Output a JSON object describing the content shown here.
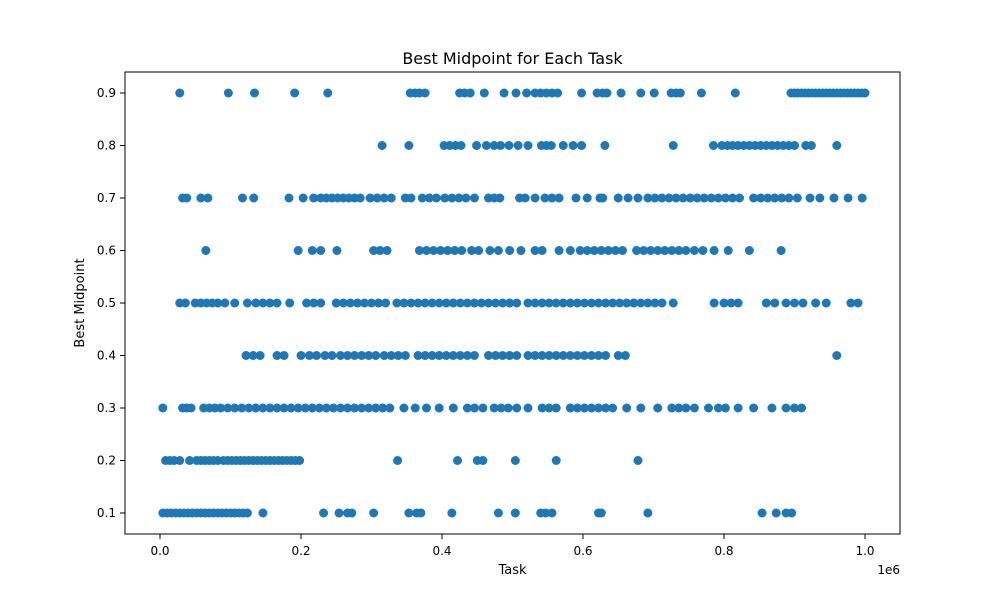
{
  "chart_data": {
    "type": "scatter",
    "title": "Best Midpoint for Each Task",
    "xlabel": "Task",
    "ylabel": "Best Midpoint",
    "x_offset_label": "1e6",
    "xlim": [
      0,
      1000000
    ],
    "ylim": [
      0.1,
      0.9
    ],
    "grid": false,
    "legend": "none",
    "marker_color": "#1f77b4",
    "x_ticks": [
      0,
      200000,
      400000,
      600000,
      800000,
      1000000
    ],
    "x_tick_labels": [
      "0.0",
      "0.2",
      "0.4",
      "0.6",
      "0.8",
      "1.0"
    ],
    "y_ticks": [
      0.1,
      0.2,
      0.3,
      0.4,
      0.5,
      0.6,
      0.7,
      0.8,
      0.9
    ],
    "y_tick_labels": [
      "0.1",
      "0.2",
      "0.3",
      "0.4",
      "0.5",
      "0.6",
      "0.7",
      "0.8",
      "0.9"
    ],
    "series": [
      {
        "y": 0.9,
        "x": [
          28000,
          97000,
          134000,
          191000,
          238000,
          355000,
          362000,
          368000,
          376000,
          425000,
          432000,
          440000,
          460000,
          488000,
          505000,
          520000,
          532000,
          540000,
          548000,
          556000,
          564000,
          598000,
          620000,
          628000,
          634000,
          654000,
          682000,
          701000,
          725000,
          732000,
          738000,
          768000,
          816000,
          895000,
          900000,
          905000,
          910000,
          915000,
          920000,
          925000,
          930000,
          935000,
          940000,
          945000,
          950000,
          955000,
          960000,
          965000,
          970000,
          975000,
          980000,
          985000,
          990000,
          995000,
          1000000
        ]
      },
      {
        "y": 0.8,
        "x": [
          315000,
          353000,
          403000,
          411000,
          419000,
          427000,
          449000,
          463000,
          474000,
          483000,
          495000,
          508000,
          522000,
          541000,
          548000,
          555000,
          572000,
          586000,
          598000,
          631000,
          728000,
          785000,
          797000,
          805000,
          812000,
          820000,
          828000,
          836000,
          844000,
          852000,
          860000,
          868000,
          876000,
          884000,
          892000,
          900000,
          916000,
          924000,
          960000
        ]
      },
      {
        "y": 0.7,
        "x": [
          32000,
          38000,
          58000,
          68000,
          117000,
          133000,
          183000,
          203000,
          218000,
          228000,
          236000,
          244000,
          252000,
          260000,
          268000,
          276000,
          284000,
          298000,
          308000,
          318000,
          328000,
          348000,
          356000,
          372000,
          382000,
          392000,
          404000,
          414000,
          424000,
          434000,
          446000,
          466000,
          474000,
          482000,
          510000,
          518000,
          532000,
          546000,
          556000,
          566000,
          590000,
          606000,
          624000,
          628000,
          650000,
          664000,
          678000,
          692000,
          702000,
          712000,
          722000,
          732000,
          742000,
          752000,
          762000,
          772000,
          782000,
          792000,
          802000,
          812000,
          822000,
          842000,
          852000,
          862000,
          872000,
          882000,
          892000,
          904000,
          922000,
          936000,
          956000,
          976000,
          996000
        ]
      },
      {
        "y": 0.6,
        "x": [
          65000,
          196000,
          216000,
          228000,
          251000,
          303000,
          312000,
          322000,
          368000,
          378000,
          388000,
          398000,
          408000,
          418000,
          428000,
          442000,
          452000,
          468000,
          480000,
          496000,
          512000,
          532000,
          542000,
          566000,
          582000,
          596000,
          606000,
          616000,
          626000,
          636000,
          646000,
          656000,
          676000,
          686000,
          696000,
          706000,
          716000,
          726000,
          736000,
          746000,
          758000,
          770000,
          786000,
          806000,
          836000,
          881000
        ]
      },
      {
        "y": 0.5,
        "x": [
          28000,
          36000,
          50000,
          58000,
          66000,
          74000,
          82000,
          92000,
          106000,
          124000,
          136000,
          146000,
          156000,
          166000,
          184000,
          208000,
          218000,
          228000,
          250000,
          260000,
          270000,
          280000,
          290000,
          300000,
          310000,
          320000,
          336000,
          346000,
          356000,
          366000,
          376000,
          386000,
          396000,
          406000,
          416000,
          426000,
          436000,
          446000,
          456000,
          466000,
          476000,
          486000,
          496000,
          506000,
          522000,
          532000,
          542000,
          552000,
          562000,
          572000,
          582000,
          592000,
          602000,
          612000,
          622000,
          632000,
          642000,
          652000,
          662000,
          672000,
          682000,
          692000,
          702000,
          712000,
          728000,
          786000,
          800000,
          810000,
          820000,
          860000,
          872000,
          888000,
          900000,
          912000,
          930000,
          945000,
          980000,
          990000
        ]
      },
      {
        "y": 0.4,
        "x": [
          122000,
          132000,
          142000,
          166000,
          176000,
          200000,
          212000,
          222000,
          234000,
          244000,
          256000,
          266000,
          276000,
          286000,
          296000,
          306000,
          318000,
          328000,
          338000,
          348000,
          366000,
          376000,
          386000,
          396000,
          406000,
          416000,
          426000,
          436000,
          446000,
          466000,
          476000,
          486000,
          496000,
          506000,
          522000,
          532000,
          542000,
          552000,
          562000,
          572000,
          582000,
          592000,
          602000,
          612000,
          622000,
          632000,
          650000,
          660000,
          960000
        ]
      },
      {
        "y": 0.3,
        "x": [
          4000,
          32000,
          38000,
          44000,
          62000,
          70000,
          78000,
          86000,
          96000,
          106000,
          116000,
          126000,
          136000,
          146000,
          156000,
          166000,
          176000,
          186000,
          196000,
          206000,
          216000,
          226000,
          236000,
          246000,
          256000,
          266000,
          276000,
          286000,
          296000,
          306000,
          316000,
          326000,
          346000,
          362000,
          378000,
          396000,
          416000,
          436000,
          446000,
          458000,
          474000,
          484000,
          494000,
          506000,
          522000,
          542000,
          552000,
          562000,
          582000,
          592000,
          602000,
          612000,
          622000,
          632000,
          642000,
          662000,
          682000,
          706000,
          726000,
          736000,
          746000,
          758000,
          778000,
          792000,
          802000,
          820000,
          842000,
          868000,
          888000,
          900000,
          910000
        ]
      },
      {
        "y": 0.2,
        "x": [
          8000,
          14000,
          20000,
          28000,
          42000,
          52000,
          58000,
          64000,
          70000,
          76000,
          82000,
          90000,
          96000,
          102000,
          108000,
          114000,
          120000,
          126000,
          132000,
          138000,
          144000,
          150000,
          156000,
          162000,
          168000,
          174000,
          180000,
          186000,
          192000,
          198000,
          337000,
          422000,
          450000,
          458000,
          504000,
          562000,
          678000
        ]
      },
      {
        "y": 0.1,
        "x": [
          4000,
          10000,
          16000,
          22000,
          28000,
          34000,
          40000,
          46000,
          52000,
          58000,
          64000,
          70000,
          76000,
          82000,
          88000,
          94000,
          100000,
          106000,
          112000,
          118000,
          124000,
          146000,
          232000,
          254000,
          266000,
          272000,
          303000,
          353000,
          364000,
          370000,
          414000,
          480000,
          504000,
          540000,
          547000,
          556000,
          622000,
          626000,
          692000,
          854000,
          874000,
          888000,
          896000
        ]
      }
    ]
  }
}
